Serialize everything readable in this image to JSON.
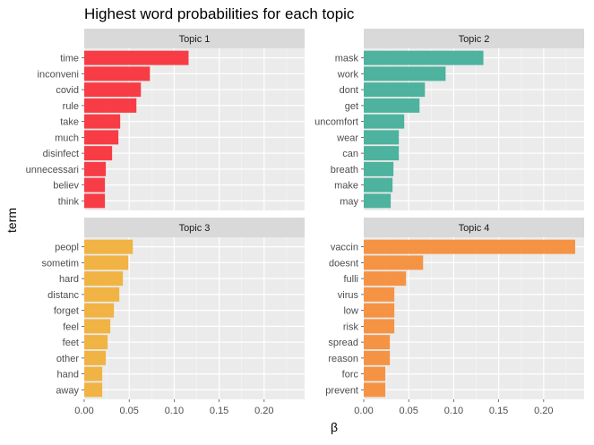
{
  "chart_data": {
    "type": "bar",
    "orientation": "horizontal",
    "title": "Highest word probabilities for each topic",
    "xlabel": "β",
    "ylabel": "term",
    "xlim": [
      0,
      0.245
    ],
    "x_ticks": [
      "0.00",
      "0.05",
      "0.10",
      "0.15",
      "0.20"
    ],
    "x_tick_values": [
      0,
      0.05,
      0.1,
      0.15,
      0.2
    ],
    "grid": true,
    "legend": "none",
    "panels": [
      {
        "name": "Topic 1",
        "color": "#F8333C",
        "categories": [
          "time",
          "inconveni",
          "covid",
          "rule",
          "take",
          "much",
          "disinfect",
          "unnecessari",
          "believ",
          "think"
        ],
        "values": [
          0.116,
          0.073,
          0.063,
          0.058,
          0.04,
          0.038,
          0.031,
          0.024,
          0.023,
          0.023
        ]
      },
      {
        "name": "Topic 2",
        "color": "#44AF9A",
        "categories": [
          "mask",
          "work",
          "dont",
          "get",
          "uncomfort",
          "wear",
          "can",
          "breath",
          "make",
          "may"
        ],
        "values": [
          0.133,
          0.091,
          0.068,
          0.062,
          0.045,
          0.039,
          0.039,
          0.033,
          0.032,
          0.03
        ]
      },
      {
        "name": "Topic 3",
        "color": "#F0B03B",
        "categories": [
          "peopl",
          "sometim",
          "hard",
          "distanc",
          "forget",
          "feel",
          "feet",
          "other",
          "hand",
          "away"
        ],
        "values": [
          0.054,
          0.049,
          0.043,
          0.039,
          0.033,
          0.029,
          0.026,
          0.024,
          0.02,
          0.02
        ]
      },
      {
        "name": "Topic 4",
        "color": "#F68E3C",
        "categories": [
          "vaccin",
          "doesnt",
          "fulli",
          "virus",
          "low",
          "risk",
          "spread",
          "reason",
          "forc",
          "prevent"
        ],
        "values": [
          0.235,
          0.066,
          0.047,
          0.034,
          0.034,
          0.034,
          0.029,
          0.029,
          0.024,
          0.024
        ]
      }
    ]
  }
}
